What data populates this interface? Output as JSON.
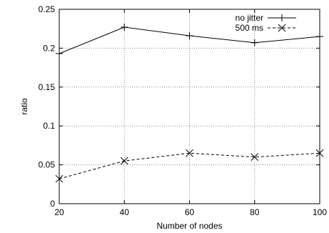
{
  "chart_data": {
    "type": "line",
    "title": "",
    "xlabel": "Number of nodes",
    "ylabel": "ratio",
    "x": [
      20,
      40,
      60,
      80,
      100
    ],
    "xlim": [
      20,
      100
    ],
    "ylim": [
      0,
      0.25
    ],
    "xticks": [
      20,
      40,
      60,
      80,
      100
    ],
    "yticks": [
      0,
      0.05,
      0.1,
      0.15,
      0.2,
      0.25
    ],
    "xtick_labels": [
      "20",
      "40",
      "60",
      "80",
      "100"
    ],
    "ytick_labels": [
      "0",
      "0.05",
      "0.1",
      "0.15",
      "0.2",
      "0.25"
    ],
    "grid": true,
    "legend_position": "top-right",
    "series": [
      {
        "name": "no jitter",
        "values": [
          0.193,
          0.227,
          0.216,
          0.207,
          0.215
        ],
        "line": "solid",
        "marker": "plus",
        "color": "#000000"
      },
      {
        "name": "500 ms",
        "values": [
          0.032,
          0.055,
          0.065,
          0.06,
          0.065
        ],
        "line": "dashed",
        "marker": "x",
        "color": "#000000"
      }
    ]
  }
}
